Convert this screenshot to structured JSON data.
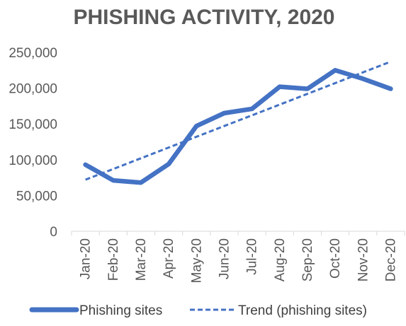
{
  "chart_data": {
    "type": "line",
    "title": "PHISHING ACTIVITY, 2020",
    "xlabel": "",
    "ylabel": "",
    "categories": [
      "Jan-20",
      "Feb-20",
      "Mar-20",
      "Apr-20",
      "May-20",
      "Jun-20",
      "Jul-20",
      "Aug-20",
      "Sep-20",
      "Oct-20",
      "Nov-20",
      "Dec-20"
    ],
    "ylim": [
      0,
      250000
    ],
    "yticks": [
      0,
      50000,
      100000,
      150000,
      200000,
      250000
    ],
    "ytick_labels": [
      "0",
      "50,000",
      "100,000",
      "150,000",
      "200,000",
      "250,000"
    ],
    "grid": false,
    "legend_position": "bottom",
    "series": [
      {
        "name": "Phishing sites",
        "style": "solid",
        "color": "#4472c4",
        "values": [
          93000,
          71000,
          68000,
          94000,
          147000,
          165000,
          171000,
          202000,
          199000,
          225000,
          213000,
          199000
        ]
      },
      {
        "name": "Trend (phishing sites)",
        "style": "dashed",
        "color": "#4472c4",
        "values": [
          72000,
          87000,
          102000,
          117000,
          132000,
          147000,
          162000,
          177000,
          192000,
          207000,
          222000,
          237000
        ]
      }
    ]
  }
}
